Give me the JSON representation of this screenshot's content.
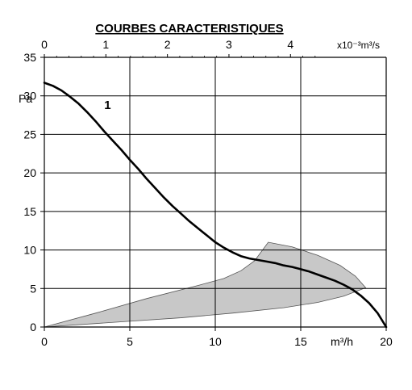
{
  "chart_data": {
    "type": "line",
    "title": "COURBES CARACTERISTIQUES",
    "ylabel": "Pa",
    "xlabel": "m³/h",
    "top_axis_label": "x10⁻³m³/s",
    "xlim": [
      0,
      20
    ],
    "ylim": [
      0,
      35
    ],
    "x_ticks": [
      0,
      5,
      10,
      15,
      20
    ],
    "y_ticks": [
      0,
      5,
      10,
      15,
      20,
      25,
      30,
      35
    ],
    "top_ticks": [
      0,
      1,
      2,
      3,
      4
    ],
    "top_axis_factor": 3.6,
    "grid": true,
    "series": [
      {
        "name": "1",
        "x": [
          0,
          0.5,
          1,
          1.5,
          2,
          2.5,
          3,
          3.5,
          4,
          4.5,
          5,
          5.5,
          6,
          6.5,
          7,
          7.5,
          8,
          8.5,
          9,
          9.5,
          10,
          10.5,
          11,
          11.5,
          12,
          12.5,
          13,
          13.5,
          14,
          14.5,
          15,
          15.5,
          16,
          16.5,
          17,
          17.5,
          18,
          18.5,
          19,
          19.5,
          20
        ],
        "y": [
          31.7,
          31.3,
          30.7,
          29.9,
          29.0,
          27.9,
          26.7,
          25.4,
          24.2,
          23.0,
          21.7,
          20.5,
          19.2,
          18.0,
          16.8,
          15.7,
          14.7,
          13.7,
          12.8,
          11.9,
          11.0,
          10.3,
          9.7,
          9.2,
          8.9,
          8.7,
          8.5,
          8.3,
          8.0,
          7.8,
          7.5,
          7.2,
          6.8,
          6.4,
          6.0,
          5.5,
          4.9,
          4.1,
          3.1,
          1.8,
          0.0
        ]
      }
    ],
    "operating_zone": {
      "upper": {
        "x": [
          0,
          3,
          6,
          9,
          10.5,
          11.5,
          12.3,
          13.1
        ],
        "y": [
          0,
          1.8,
          3.7,
          5.4,
          6.3,
          7.3,
          8.6,
          11.0
        ]
      },
      "lower": {
        "x": [
          0,
          4,
          8,
          11,
          14,
          16,
          17.5,
          18.8
        ],
        "y": [
          0,
          0.6,
          1.2,
          1.8,
          2.5,
          3.2,
          4.0,
          5.1
        ]
      },
      "outer": {
        "x": [
          13.1,
          14.5,
          16,
          17.3,
          18.2,
          18.8
        ],
        "y": [
          11.0,
          10.4,
          9.3,
          8.0,
          6.6,
          5.1
        ]
      },
      "color": "#c8c8c8"
    }
  }
}
